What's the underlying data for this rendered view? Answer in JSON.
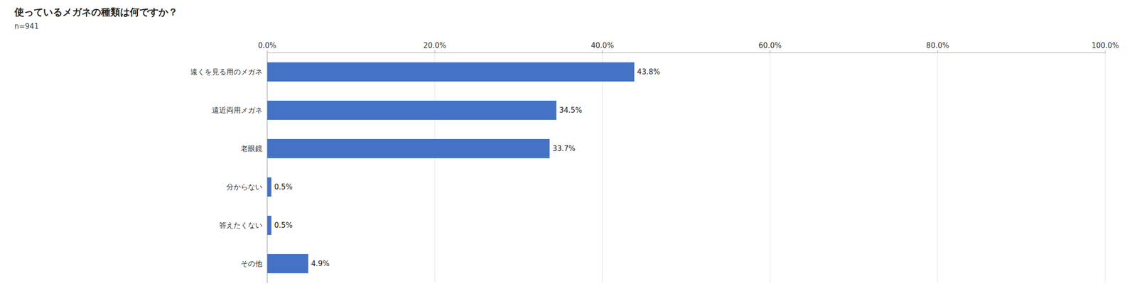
{
  "chart_data": {
    "type": "bar",
    "orientation": "horizontal",
    "title": "使っているメガネの種類は何ですか？",
    "subtitle": "n=941",
    "categories": [
      "遠くを見る用のメガネ",
      "遠近両用メガネ",
      "老眼鏡",
      "分からない",
      "答えたくない",
      "その他"
    ],
    "values": [
      43.8,
      34.5,
      33.7,
      0.5,
      0.5,
      4.9
    ],
    "value_labels": [
      "43.8%",
      "34.5%",
      "33.7%",
      "0.5%",
      "0.5%",
      "4.9%"
    ],
    "data_labels": true,
    "color": "#4472C4",
    "xlim": [
      0,
      100
    ],
    "xticks": [
      {
        "value": 0,
        "label": "0.0%"
      },
      {
        "value": 20,
        "label": "20.0%"
      },
      {
        "value": 40,
        "label": "40.0%"
      },
      {
        "value": 60,
        "label": "60.0%"
      },
      {
        "value": 80,
        "label": "80.0%"
      },
      {
        "value": 100,
        "label": "100.0%"
      }
    ],
    "grid": true
  }
}
